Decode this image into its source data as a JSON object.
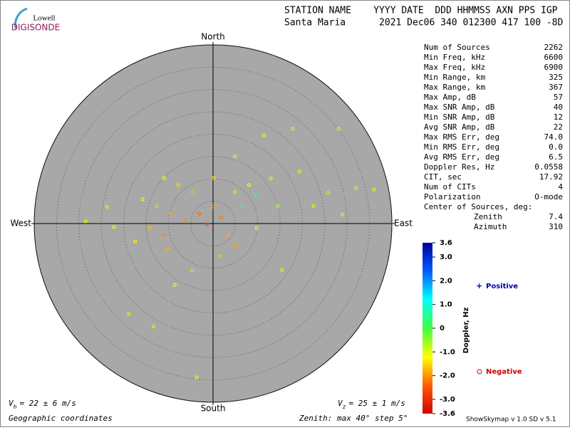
{
  "logo": {
    "top": "Lowell",
    "bottom": "DIGISONDE"
  },
  "header": {
    "line1": "STATION NAME    YYYY DATE  DDD HHMMSS AXN PPS IGP",
    "line2": "Santa Maria      2021 Dec06 340 012300 417 100 -8D"
  },
  "stats": [
    [
      "Num of Sources",
      "2262"
    ],
    [
      "Min Freq, kHz",
      "6600"
    ],
    [
      "Max Freq, kHz",
      "6900"
    ],
    [
      "Min Range, km",
      "325"
    ],
    [
      "Max Range, km",
      "367"
    ],
    [
      "Max Amp, dB",
      "57"
    ],
    [
      "Max SNR Amp, dB",
      "40"
    ],
    [
      "Min SNR Amp, dB",
      "12"
    ],
    [
      "Avg SNR Amp, dB",
      "22"
    ],
    [
      "Max RMS Err, deg",
      "74.0"
    ],
    [
      "Min RMS Err, deg",
      "0.0"
    ],
    [
      "Avg RMS Err, deg",
      "6.5"
    ],
    [
      "Doppler Res, Hz",
      "0.0558"
    ],
    [
      "CIT, sec",
      "17.92"
    ],
    [
      "Num of CITs",
      "4"
    ],
    [
      "Polarization",
      "O-mode"
    ]
  ],
  "center": {
    "title": "Center of Sources, deg:",
    "rows": [
      [
        "Zenith",
        "7.4"
      ],
      [
        "Azimuth",
        "310"
      ]
    ]
  },
  "legend": {
    "positive": "Positive",
    "negative": "Negative"
  },
  "footer": {
    "vh": {
      "symbol": "V",
      "sub": "h",
      "text": "= 22 ± 6 m/s"
    },
    "vz": {
      "symbol": "V",
      "sub": "z",
      "text": "= 25 ± 1 m/s"
    },
    "coords": "Geographic coordinates",
    "zenith": "Zenith: max 40°  step 5°",
    "version": "ShowSkymap v 1.0  SD v 5.1"
  },
  "chart_data": {
    "type": "polar-scatter",
    "directions": {
      "north": "North",
      "east": "East",
      "south": "South",
      "west": "West"
    },
    "rlim": [
      0,
      40
    ],
    "rticks": [
      5,
      10,
      15,
      20,
      25,
      30,
      35,
      40
    ],
    "colorbar": {
      "title": "Doppler, Hz",
      "clim": [
        -3.6,
        3.6
      ],
      "ticks": [
        3.6,
        {
          "value": 3,
          "label": "3.0"
        },
        {
          "value": 2,
          "label": "2.0"
        },
        {
          "value": 1,
          "label": "1.0"
        },
        0,
        {
          "value": -1,
          "label": "-1.0"
        },
        {
          "value": -2,
          "label": "-2.0"
        },
        {
          "value": -3,
          "label": "-3.0"
        },
        -3.6
      ]
    },
    "points": {
      "azimuth": [
        35,
        43,
        52,
        59,
        75,
        76,
        78,
        306,
        276,
        283,
        287,
        289,
        279,
        271,
        223,
        210,
        212,
        204,
        186,
        127,
        96,
        124,
        2,
        18,
        30,
        40,
        53,
        1,
        318,
        264,
        51,
        60,
        57,
        257,
        266,
        257,
        268,
        241,
        167,
        135,
        80,
        86,
        75,
        327,
        313
      ],
      "zenith": [
        8.6,
        11.8,
        16.4,
        22.6,
        26.6,
        33,
        36.8,
        3.8,
        6.2,
        9.7,
        13.2,
        16.7,
        24,
        28.5,
        27.6,
        26.6,
        16.2,
        11.5,
        34.6,
        4.2,
        9.8,
        18.6,
        3.8,
        15.8,
        22.8,
        27.7,
        35.2,
        10.2,
        11.6,
        1.4,
        2.3,
        7.6,
        11.5,
        11.3,
        14.2,
        17.9,
        22.2,
        11.7,
        7.5,
        7,
        22.8,
        29,
        15,
        8.4,
        15
      ],
      "doppler": [
        -1.4,
        -1.2,
        -1.0,
        -1.0,
        -0.8,
        -0.9,
        -1.0,
        -2.3,
        -2.1,
        -1.9,
        -1.6,
        -1.3,
        -1.0,
        -1.1,
        -1.0,
        -1.0,
        -1.2,
        -1.5,
        -1.1,
        -1.8,
        -1.2,
        -1.0,
        -2.0,
        -1.3,
        -1.1,
        -1.0,
        -1.0,
        -1.4,
        -1.5,
        -2.5,
        -2.2,
        0.4,
        0.3,
        -2.1,
        -1.7,
        -1.3,
        -1.1,
        -1.8,
        -1.6,
        -1.9,
        -0.9,
        -1.0,
        -0.6,
        -1.7,
        -1.3
      ]
    }
  }
}
